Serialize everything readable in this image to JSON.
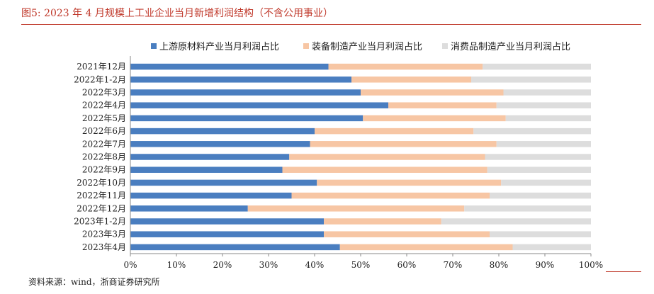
{
  "header": {
    "title": "图5:  2023 年 4 月规模上工业企业当月新增利润结构（不含公用事业）"
  },
  "footer": {
    "source": "资料来源：wind，浙商证券研究所"
  },
  "colors": {
    "series": [
      "#4a7ec0",
      "#f7c6a4",
      "#dddddd"
    ],
    "title": "#c0392b"
  },
  "chart_data": {
    "type": "bar",
    "orientation": "horizontal",
    "stacked": true,
    "percent": true,
    "title": "",
    "xlabel": "",
    "ylabel": "",
    "xlim": [
      0,
      100
    ],
    "xticks": [
      "0%",
      "10%",
      "20%",
      "30%",
      "40%",
      "50%",
      "60%",
      "70%",
      "80%",
      "90%",
      "100%"
    ],
    "legend_position": "top",
    "grid": false,
    "categories": [
      "2021年12月",
      "2022年1-2月",
      "2022年3月",
      "2022年4月",
      "2022年5月",
      "2022年6月",
      "2022年7月",
      "2022年8月",
      "2022年9月",
      "2022年10月",
      "2022年11月",
      "2022年12月",
      "2023年1-2月",
      "2023年3月",
      "2023年4月"
    ],
    "series": [
      {
        "name": "上游原材料产业当月利润占比",
        "values": [
          43,
          48,
          50,
          56,
          50.5,
          40,
          39,
          34.5,
          33,
          40.5,
          35,
          25.5,
          42,
          42,
          45.5
        ]
      },
      {
        "name": "装备制造产业当月利润占比",
        "values": [
          33.5,
          26,
          31,
          23.5,
          31,
          34.5,
          40.5,
          42.5,
          44.5,
          40,
          43,
          47,
          25.5,
          36,
          37.5
        ]
      },
      {
        "name": "消费品制造产业当月利润占比",
        "values": [
          23.5,
          26,
          19,
          20.5,
          18.5,
          25.5,
          20.5,
          23,
          22.5,
          19.5,
          22,
          27.5,
          32.5,
          22,
          17
        ]
      }
    ]
  }
}
